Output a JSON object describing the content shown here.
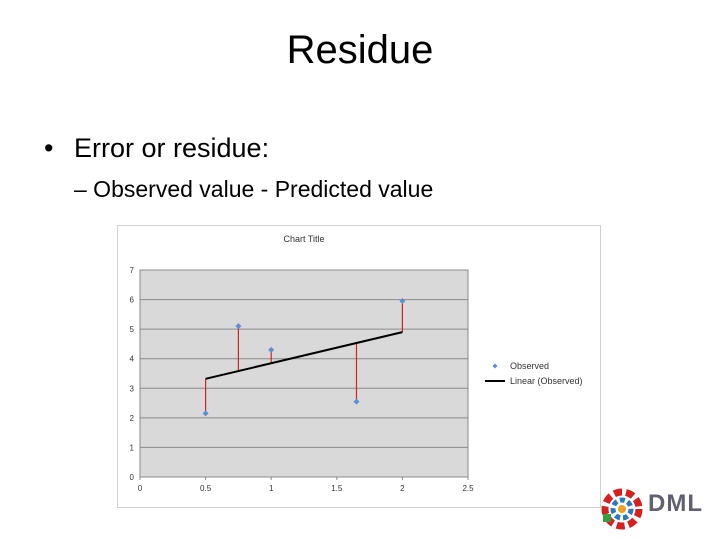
{
  "slide": {
    "title": "Residue",
    "bullet": "Error or residue:",
    "sub_bullet": "– Observed value - Predicted value"
  },
  "logo": {
    "text": "DML",
    "icon": "dml-logo-icon"
  },
  "chart_data": {
    "type": "scatter",
    "title": "Chart Title",
    "xlabel": "",
    "ylabel": "",
    "xlim": [
      0,
      2.5
    ],
    "ylim": [
      0,
      7
    ],
    "xticks": [
      "0",
      "0.5",
      "1",
      "1.5",
      "2",
      "2.5"
    ],
    "yticks": [
      "0",
      "1",
      "2",
      "3",
      "4",
      "5",
      "6",
      "7"
    ],
    "grid": true,
    "legend_position": "right",
    "series": [
      {
        "name": "Observed",
        "color": "#5b8fd6",
        "points": [
          [
            0.5,
            2.15
          ],
          [
            0.75,
            5.1
          ],
          [
            1.0,
            4.3
          ],
          [
            1.65,
            2.55
          ],
          [
            2.0,
            5.95
          ]
        ]
      }
    ],
    "trendline": {
      "name": "Linear (Observed)",
      "color": "#000000",
      "start": [
        0.5,
        3.32
      ],
      "end": [
        2.0,
        4.9
      ]
    },
    "residual_color": "#d92020",
    "plot_background": "#d9d9d9"
  }
}
